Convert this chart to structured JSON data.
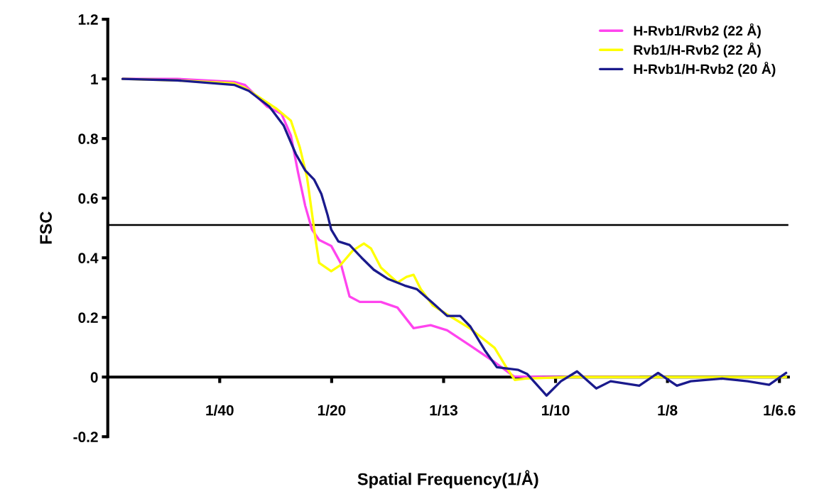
{
  "chart_data": {
    "type": "line",
    "xlabel": "Spatial Frequency(1/Å)",
    "ylabel": "FSC",
    "xlim": [
      0,
      0.152
    ],
    "ylim": [
      -0.2,
      1.2
    ],
    "xticks": [
      {
        "value": 0.025,
        "label": "1/40"
      },
      {
        "value": 0.05,
        "label": "1/20"
      },
      {
        "value": 0.075,
        "label": "1/13"
      },
      {
        "value": 0.1,
        "label": "1/10"
      },
      {
        "value": 0.125,
        "label": "1/8"
      },
      {
        "value": 0.15,
        "label": "1/6.6"
      }
    ],
    "yticks": [
      -0.2,
      0,
      0.2,
      0.4,
      0.6,
      0.8,
      1,
      1.2
    ],
    "grid": false,
    "legend": "top right",
    "marker": "none",
    "line_style": "solid",
    "ref_lines": [
      {
        "axis": "y",
        "value": 0.51,
        "color": "#000000"
      }
    ],
    "series": [
      {
        "name": "H-Rvb1/Rvb2 (22 Å)",
        "color": "#ff44ee",
        "x": [
          0.0033,
          0.0155,
          0.0282,
          0.0306,
          0.0356,
          0.0388,
          0.0409,
          0.0425,
          0.0441,
          0.0456,
          0.0472,
          0.0499,
          0.052,
          0.054,
          0.0563,
          0.061,
          0.0647,
          0.0683,
          0.0721,
          0.0758,
          0.081,
          0.0864,
          0.0907,
          0.1028,
          0.1187
        ],
        "values": [
          1.0,
          1.0,
          0.99,
          0.98,
          0.907,
          0.883,
          0.81,
          0.686,
          0.574,
          0.495,
          0.46,
          0.44,
          0.383,
          0.27,
          0.252,
          0.252,
          0.233,
          0.164,
          0.174,
          0.157,
          0.105,
          0.05,
          0.002,
          0,
          0
        ]
      },
      {
        "name": "Rvb1/H-Rvb2 (22 Å)",
        "color": "#ffff00",
        "x": [
          0.0033,
          0.0155,
          0.0282,
          0.0306,
          0.0377,
          0.0409,
          0.0429,
          0.0445,
          0.0456,
          0.0464,
          0.0472,
          0.0499,
          0.052,
          0.0547,
          0.0572,
          0.0588,
          0.061,
          0.0647,
          0.0667,
          0.0683,
          0.0699,
          0.0726,
          0.0758,
          0.081,
          0.0864,
          0.089,
          0.0909,
          0.0933,
          0.1028,
          0.1187,
          0.1345,
          0.1515
        ],
        "values": [
          1.0,
          0.995,
          0.985,
          0.97,
          0.9,
          0.86,
          0.77,
          0.67,
          0.55,
          0.462,
          0.383,
          0.355,
          0.376,
          0.424,
          0.448,
          0.431,
          0.367,
          0.317,
          0.336,
          0.343,
          0.295,
          0.24,
          0.21,
          0.162,
          0.098,
          0.033,
          -0.01,
          -0.005,
          0,
          0,
          0,
          0
        ]
      },
      {
        "name": "H-Rvb1/H-Rvb2 (20 Å)",
        "color": "#1a1a8c",
        "x": [
          0.0033,
          0.0155,
          0.0282,
          0.0315,
          0.0361,
          0.0393,
          0.042,
          0.0441,
          0.0461,
          0.0477,
          0.0491,
          0.0499,
          0.0515,
          0.054,
          0.0567,
          0.0594,
          0.0626,
          0.0663,
          0.069,
          0.0726,
          0.0758,
          0.0787,
          0.081,
          0.0842,
          0.0869,
          0.0917,
          0.0937,
          0.098,
          0.1012,
          0.1048,
          0.1091,
          0.1123,
          0.1187,
          0.1229,
          0.1271,
          0.1302,
          0.1372,
          0.1429,
          0.1477,
          0.1515
        ],
        "values": [
          1.0,
          0.995,
          0.98,
          0.96,
          0.907,
          0.843,
          0.748,
          0.693,
          0.662,
          0.614,
          0.543,
          0.495,
          0.455,
          0.443,
          0.4,
          0.36,
          0.329,
          0.307,
          0.295,
          0.248,
          0.205,
          0.205,
          0.169,
          0.09,
          0.033,
          0.024,
          0.01,
          -0.062,
          -0.014,
          0.019,
          -0.038,
          -0.014,
          -0.029,
          0.014,
          -0.029,
          -0.014,
          -0.005,
          -0.014,
          -0.026,
          0.014
        ]
      }
    ]
  }
}
